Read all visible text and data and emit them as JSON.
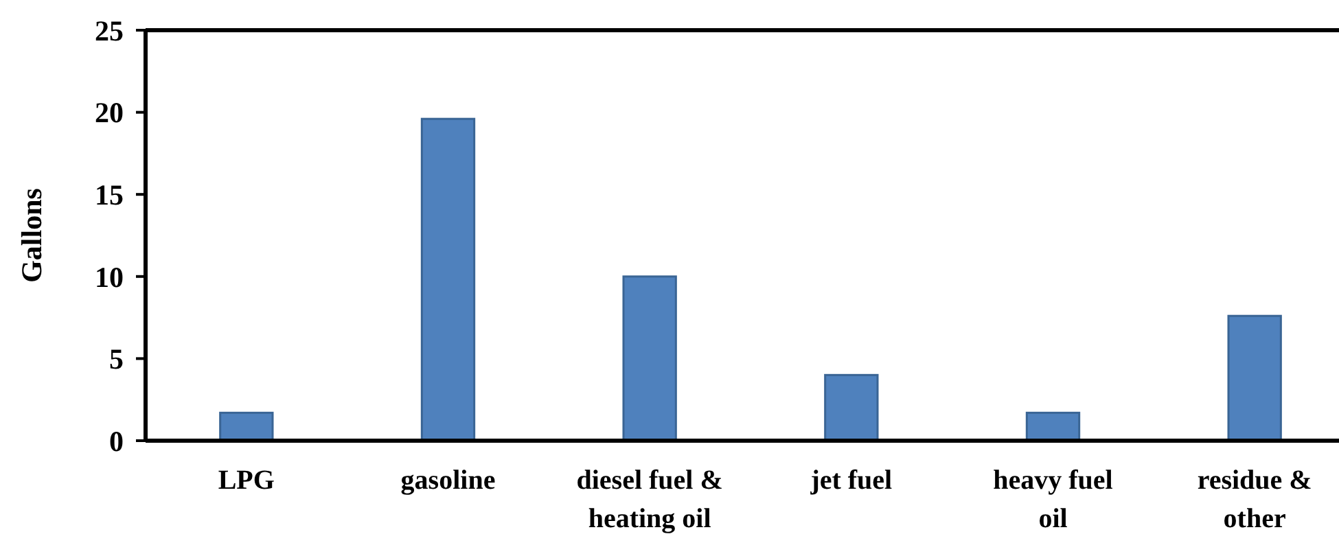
{
  "chart_data": {
    "type": "bar",
    "ylabel": "Gallons",
    "categories": [
      "LPG",
      "gasoline",
      "diesel fuel & heating oil",
      "jet fuel",
      "heavy fuel oil",
      "residue & other"
    ],
    "values": [
      1.7,
      19.6,
      10.0,
      4.0,
      1.7,
      7.6
    ],
    "color": "#4f81bd",
    "ylim": [
      0,
      25
    ],
    "yticks": [
      0,
      5,
      10,
      15,
      20,
      25
    ],
    "grid": false
  }
}
